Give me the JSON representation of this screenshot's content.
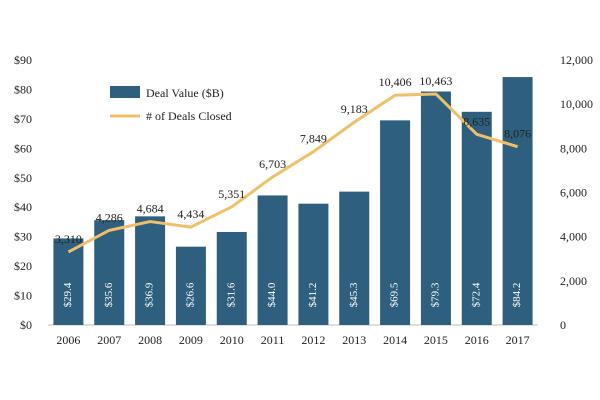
{
  "chart_data": {
    "type": "bar",
    "title": "",
    "xlabel": "",
    "ylabel": "",
    "categories": [
      "2006",
      "2007",
      "2008",
      "2009",
      "2010",
      "2011",
      "2012",
      "2013",
      "2014",
      "2015",
      "2016",
      "2017"
    ],
    "series": [
      {
        "name": "Deal Value ($B)",
        "type": "bar",
        "axis": "left",
        "color": "#2e5f7e",
        "values": [
          29.4,
          35.6,
          36.9,
          26.6,
          31.6,
          44.0,
          41.2,
          45.3,
          69.5,
          79.3,
          72.4,
          84.2
        ],
        "labels": [
          "$29.4",
          "$35.6",
          "$36.9",
          "$26.6",
          "$31.6",
          "$44.0",
          "$41.2",
          "$45.3",
          "$69.5",
          "$79.3",
          "$72.4",
          "$84.2"
        ]
      },
      {
        "name": "# of Deals Closed",
        "type": "line",
        "axis": "right",
        "color": "#f0bf6a",
        "values": [
          3310,
          4286,
          4684,
          4434,
          5351,
          6703,
          7849,
          9183,
          10406,
          10463,
          8635,
          8076
        ],
        "labels": [
          "3,310",
          "4,286",
          "4,684",
          "4,434",
          "5,351",
          "6,703",
          "7,849",
          "9,183",
          "10,406",
          "10,463",
          "8,635",
          "8,076"
        ]
      }
    ],
    "y_left": {
      "ylim": [
        0,
        90
      ],
      "ticks": [
        "$0",
        "$10",
        "$20",
        "$30",
        "$40",
        "$50",
        "$60",
        "$70",
        "$80",
        "$90"
      ]
    },
    "y_right": {
      "ylim": [
        0,
        12000
      ],
      "ticks": [
        "0",
        "2,000",
        "4,000",
        "6,000",
        "8,000",
        "10,000",
        "12,000"
      ]
    },
    "grid": false,
    "legend_position": "top-left"
  }
}
